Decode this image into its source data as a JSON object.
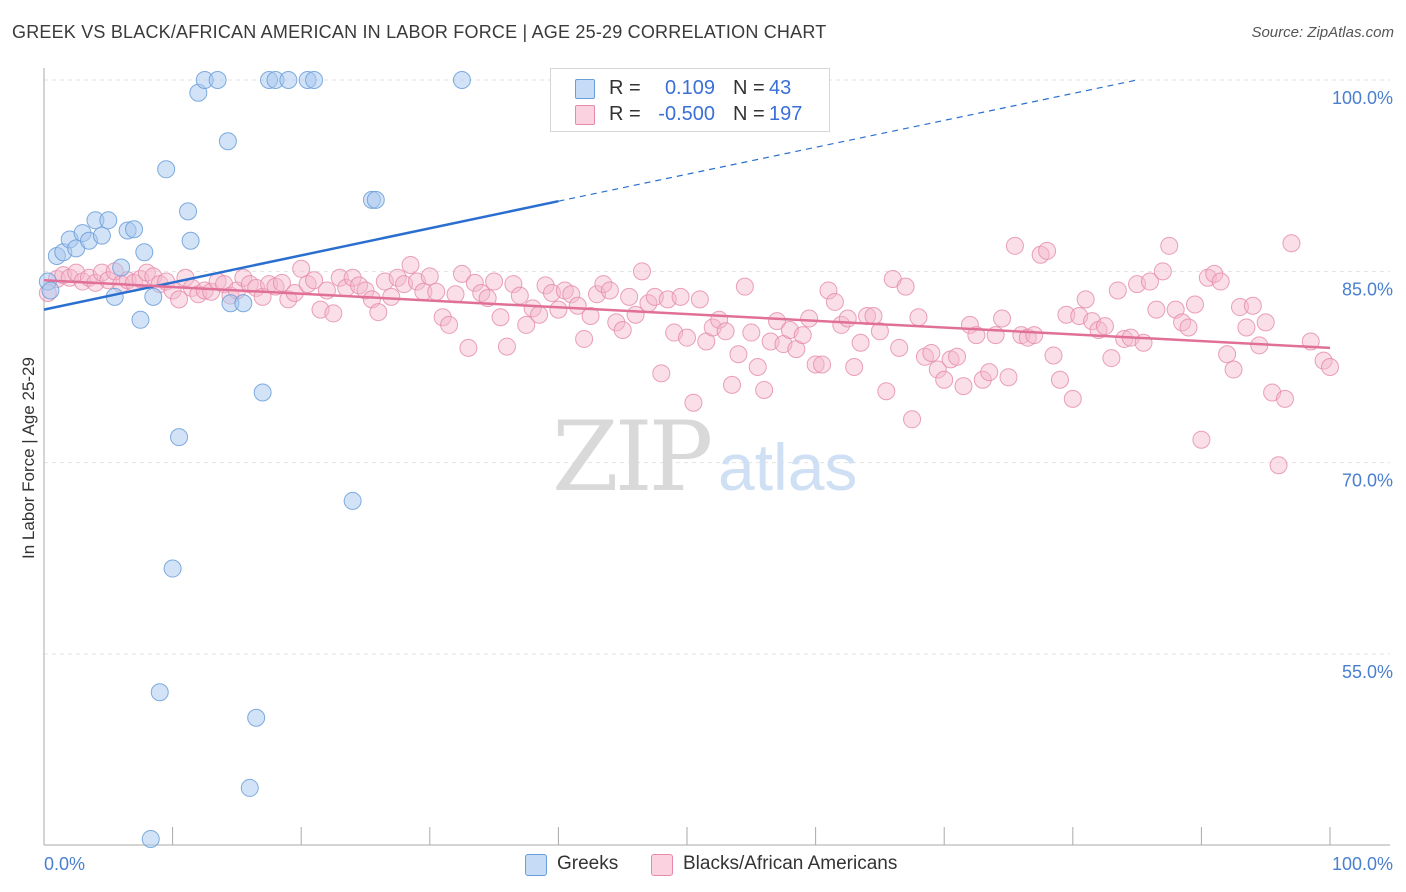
{
  "title": "GREEK VS BLACK/AFRICAN AMERICAN IN LABOR FORCE | AGE 25-29 CORRELATION CHART",
  "source": "Source: ZipAtlas.com",
  "watermark": {
    "zip": "ZIP",
    "atlas": "atlas"
  },
  "legend": {
    "r_label": "R =",
    "n_label": "N =",
    "rows": [
      {
        "r": "0.109",
        "n": "43",
        "color": "#a8c8f0"
      },
      {
        "r": "-0.500",
        "n": "197",
        "color": "#f5b8cc"
      }
    ]
  },
  "colors": {
    "greek_fill": "#a8c8f0",
    "greek_stroke": "#6a9ed8",
    "black_fill": "#f5b8cc",
    "black_stroke": "#e58aa8",
    "greek_line": "#2a6fd0",
    "black_line": "#e07098",
    "axis_text": "#4a7fcf"
  },
  "chart_data": {
    "type": "scatter",
    "title": "GREEK VS BLACK/AFRICAN AMERICAN IN LABOR FORCE | AGE 25-29 CORRELATION CHART",
    "xlabel": "",
    "ylabel": "In Labor Force | Age 25-29",
    "xlim": [
      0,
      100
    ],
    "ylim": [
      40,
      101
    ],
    "x_tick_labels": [
      "0.0%",
      "100.0%"
    ],
    "y_ticks": [
      55,
      70,
      85,
      100
    ],
    "y_tick_labels": [
      "55.0%",
      "70.0%",
      "85.0%",
      "100.0%"
    ],
    "grid": true,
    "legend_position": "top-center",
    "series": [
      {
        "name": "Greeks",
        "r": 0.109,
        "n": 43,
        "trend": {
          "x0": 0,
          "y0": 82.0,
          "x1": 40,
          "y1": 90.5,
          "dashed_to_x": 85,
          "dashed_to_y": 100.0
        },
        "points": [
          [
            0.3,
            84.2
          ],
          [
            0.5,
            83.5
          ],
          [
            1.0,
            86.2
          ],
          [
            1.5,
            86.5
          ],
          [
            2.0,
            87.5
          ],
          [
            2.5,
            86.8
          ],
          [
            3.0,
            88.0
          ],
          [
            3.5,
            87.4
          ],
          [
            4.0,
            89.0
          ],
          [
            4.5,
            87.8
          ],
          [
            5.0,
            89.0
          ],
          [
            5.5,
            83.0
          ],
          [
            6.0,
            85.3
          ],
          [
            6.5,
            88.2
          ],
          [
            7.0,
            88.3
          ],
          [
            7.5,
            81.2
          ],
          [
            7.8,
            86.5
          ],
          [
            8.5,
            83.0
          ],
          [
            9.5,
            93.0
          ],
          [
            10.5,
            72.0
          ],
          [
            11.2,
            89.7
          ],
          [
            11.4,
            87.4
          ],
          [
            12.0,
            99.0
          ],
          [
            12.5,
            100.0
          ],
          [
            13.5,
            100.0
          ],
          [
            14.3,
            95.2
          ],
          [
            14.5,
            82.5
          ],
          [
            15.5,
            82.5
          ],
          [
            17.0,
            75.5
          ],
          [
            17.5,
            100.0
          ],
          [
            18.0,
            100.0
          ],
          [
            19.0,
            100.0
          ],
          [
            20.5,
            100.0
          ],
          [
            21.0,
            100.0
          ],
          [
            24.0,
            67.0
          ],
          [
            25.5,
            90.6
          ],
          [
            25.8,
            90.6
          ],
          [
            32.5,
            100.0
          ],
          [
            10.0,
            61.7
          ],
          [
            9.0,
            52.0
          ],
          [
            16.5,
            50.0
          ],
          [
            16.0,
            44.5
          ],
          [
            8.3,
            40.5
          ]
        ]
      },
      {
        "name": "Blacks/African Americans",
        "r": -0.5,
        "n": 197,
        "trend": {
          "x0": 0,
          "y0": 84.3,
          "x1": 100,
          "y1": 79.0
        },
        "points": [
          [
            0.3,
            83.3
          ],
          [
            1.0,
            84.4
          ],
          [
            1.5,
            84.7
          ],
          [
            2.0,
            84.5
          ],
          [
            2.5,
            84.9
          ],
          [
            3.0,
            84.2
          ],
          [
            3.5,
            84.5
          ],
          [
            4.0,
            84.1
          ],
          [
            4.5,
            84.9
          ],
          [
            5.0,
            84.3
          ],
          [
            5.5,
            85.0
          ],
          [
            6.0,
            84.0
          ],
          [
            6.5,
            84.3
          ],
          [
            7.0,
            84.1
          ],
          [
            7.5,
            84.4
          ],
          [
            8.0,
            84.9
          ],
          [
            8.5,
            84.6
          ],
          [
            9.0,
            84.0
          ],
          [
            9.5,
            84.2
          ],
          [
            10.0,
            83.5
          ],
          [
            10.5,
            82.8
          ],
          [
            11.0,
            84.5
          ],
          [
            11.5,
            83.7
          ],
          [
            12.0,
            83.2
          ],
          [
            12.5,
            83.5
          ],
          [
            13.0,
            83.4
          ],
          [
            13.5,
            84.2
          ],
          [
            14.0,
            84.0
          ],
          [
            14.5,
            83.1
          ],
          [
            15.0,
            83.5
          ],
          [
            15.5,
            84.5
          ],
          [
            16.0,
            84.0
          ],
          [
            16.5,
            83.7
          ],
          [
            17.0,
            83.0
          ],
          [
            17.5,
            84.0
          ],
          [
            18.0,
            83.8
          ],
          [
            18.5,
            84.1
          ],
          [
            19.0,
            82.8
          ],
          [
            19.5,
            83.3
          ],
          [
            20.0,
            85.2
          ],
          [
            20.5,
            84.0
          ],
          [
            21.0,
            84.3
          ],
          [
            21.5,
            82.0
          ],
          [
            22.0,
            83.5
          ],
          [
            22.5,
            81.7
          ],
          [
            23.0,
            84.5
          ],
          [
            23.5,
            83.7
          ],
          [
            24.0,
            84.5
          ],
          [
            24.5,
            83.9
          ],
          [
            25.0,
            83.5
          ],
          [
            25.5,
            82.8
          ],
          [
            26.0,
            81.8
          ],
          [
            26.5,
            84.2
          ],
          [
            27.0,
            83.0
          ],
          [
            27.5,
            84.5
          ],
          [
            28.0,
            84.0
          ],
          [
            28.5,
            85.5
          ],
          [
            29.0,
            84.2
          ],
          [
            29.5,
            83.4
          ],
          [
            30.0,
            84.6
          ],
          [
            30.5,
            83.4
          ],
          [
            31.0,
            81.4
          ],
          [
            31.5,
            80.8
          ],
          [
            32.0,
            83.2
          ],
          [
            32.5,
            84.8
          ],
          [
            33.0,
            79.0
          ],
          [
            33.5,
            84.1
          ],
          [
            34.0,
            83.3
          ],
          [
            34.5,
            82.9
          ],
          [
            35.0,
            84.2
          ],
          [
            35.5,
            81.4
          ],
          [
            36.0,
            79.1
          ],
          [
            36.5,
            84.0
          ],
          [
            37.0,
            83.1
          ],
          [
            37.5,
            80.8
          ],
          [
            38.0,
            82.1
          ],
          [
            38.5,
            81.6
          ],
          [
            39.0,
            83.9
          ],
          [
            39.5,
            83.3
          ],
          [
            40.0,
            82.0
          ],
          [
            40.5,
            83.5
          ],
          [
            41.0,
            83.2
          ],
          [
            41.5,
            82.3
          ],
          [
            42.0,
            79.7
          ],
          [
            42.5,
            81.5
          ],
          [
            43.0,
            83.2
          ],
          [
            43.5,
            84.0
          ],
          [
            44.0,
            83.5
          ],
          [
            44.5,
            81.0
          ],
          [
            45.0,
            80.4
          ],
          [
            45.5,
            83.0
          ],
          [
            46.0,
            81.6
          ],
          [
            46.5,
            85.0
          ],
          [
            47.0,
            82.5
          ],
          [
            47.5,
            83.0
          ],
          [
            48.0,
            77.0
          ],
          [
            48.5,
            82.8
          ],
          [
            49.0,
            80.2
          ],
          [
            49.5,
            83.0
          ],
          [
            50.0,
            79.8
          ],
          [
            50.5,
            74.7
          ],
          [
            51.0,
            82.8
          ],
          [
            51.5,
            79.5
          ],
          [
            52.0,
            80.6
          ],
          [
            52.5,
            81.2
          ],
          [
            53.0,
            80.3
          ],
          [
            53.5,
            76.1
          ],
          [
            54.0,
            78.5
          ],
          [
            54.5,
            83.8
          ],
          [
            55.0,
            80.2
          ],
          [
            55.5,
            77.5
          ],
          [
            56.0,
            75.7
          ],
          [
            56.5,
            79.5
          ],
          [
            57.0,
            81.1
          ],
          [
            57.5,
            79.3
          ],
          [
            58.0,
            80.4
          ],
          [
            58.5,
            78.9
          ],
          [
            59.0,
            80.0
          ],
          [
            59.5,
            81.3
          ],
          [
            60.0,
            77.7
          ],
          [
            60.5,
            77.7
          ],
          [
            61.0,
            83.5
          ],
          [
            61.5,
            82.6
          ],
          [
            62.0,
            80.8
          ],
          [
            62.5,
            81.3
          ],
          [
            63.0,
            77.5
          ],
          [
            63.5,
            79.4
          ],
          [
            64.0,
            81.5
          ],
          [
            64.5,
            81.5
          ],
          [
            65.0,
            80.3
          ],
          [
            65.5,
            75.6
          ],
          [
            66.0,
            84.4
          ],
          [
            66.5,
            79.0
          ],
          [
            67.0,
            83.8
          ],
          [
            67.5,
            73.4
          ],
          [
            68.0,
            81.4
          ],
          [
            68.5,
            78.3
          ],
          [
            69.0,
            78.6
          ],
          [
            69.5,
            77.3
          ],
          [
            70.0,
            76.5
          ],
          [
            70.5,
            78.1
          ],
          [
            71.0,
            78.3
          ],
          [
            71.5,
            76.0
          ],
          [
            72.0,
            80.8
          ],
          [
            72.5,
            80.0
          ],
          [
            73.0,
            76.5
          ],
          [
            73.5,
            77.1
          ],
          [
            74.0,
            80.0
          ],
          [
            74.5,
            81.3
          ],
          [
            75.0,
            76.7
          ],
          [
            75.5,
            87.0
          ],
          [
            76.0,
            80.0
          ],
          [
            76.5,
            79.8
          ],
          [
            77.0,
            80.0
          ],
          [
            77.5,
            86.3
          ],
          [
            78.0,
            86.6
          ],
          [
            78.5,
            78.4
          ],
          [
            79.0,
            76.5
          ],
          [
            79.5,
            81.6
          ],
          [
            80.0,
            75.0
          ],
          [
            80.5,
            81.5
          ],
          [
            81.0,
            82.8
          ],
          [
            81.5,
            81.1
          ],
          [
            82.0,
            80.4
          ],
          [
            82.5,
            80.7
          ],
          [
            83.0,
            78.2
          ],
          [
            83.5,
            83.5
          ],
          [
            84.0,
            79.7
          ],
          [
            84.5,
            79.8
          ],
          [
            85.0,
            84.0
          ],
          [
            85.5,
            79.4
          ],
          [
            86.0,
            84.2
          ],
          [
            86.5,
            82.0
          ],
          [
            87.0,
            85.0
          ],
          [
            87.5,
            87.0
          ],
          [
            88.0,
            82.0
          ],
          [
            88.5,
            81.0
          ],
          [
            89.0,
            80.6
          ],
          [
            89.5,
            82.4
          ],
          [
            90.0,
            71.8
          ],
          [
            90.5,
            84.5
          ],
          [
            91.0,
            84.8
          ],
          [
            91.5,
            84.2
          ],
          [
            92.0,
            78.5
          ],
          [
            92.5,
            77.3
          ],
          [
            93.0,
            82.2
          ],
          [
            93.5,
            80.6
          ],
          [
            94.0,
            82.3
          ],
          [
            94.5,
            79.2
          ],
          [
            95.0,
            81.0
          ],
          [
            95.5,
            75.5
          ],
          [
            96.0,
            69.8
          ],
          [
            96.5,
            75.0
          ],
          [
            97.0,
            87.2
          ],
          [
            98.5,
            79.5
          ],
          [
            99.5,
            78.0
          ],
          [
            100.0,
            77.5
          ]
        ]
      }
    ]
  }
}
